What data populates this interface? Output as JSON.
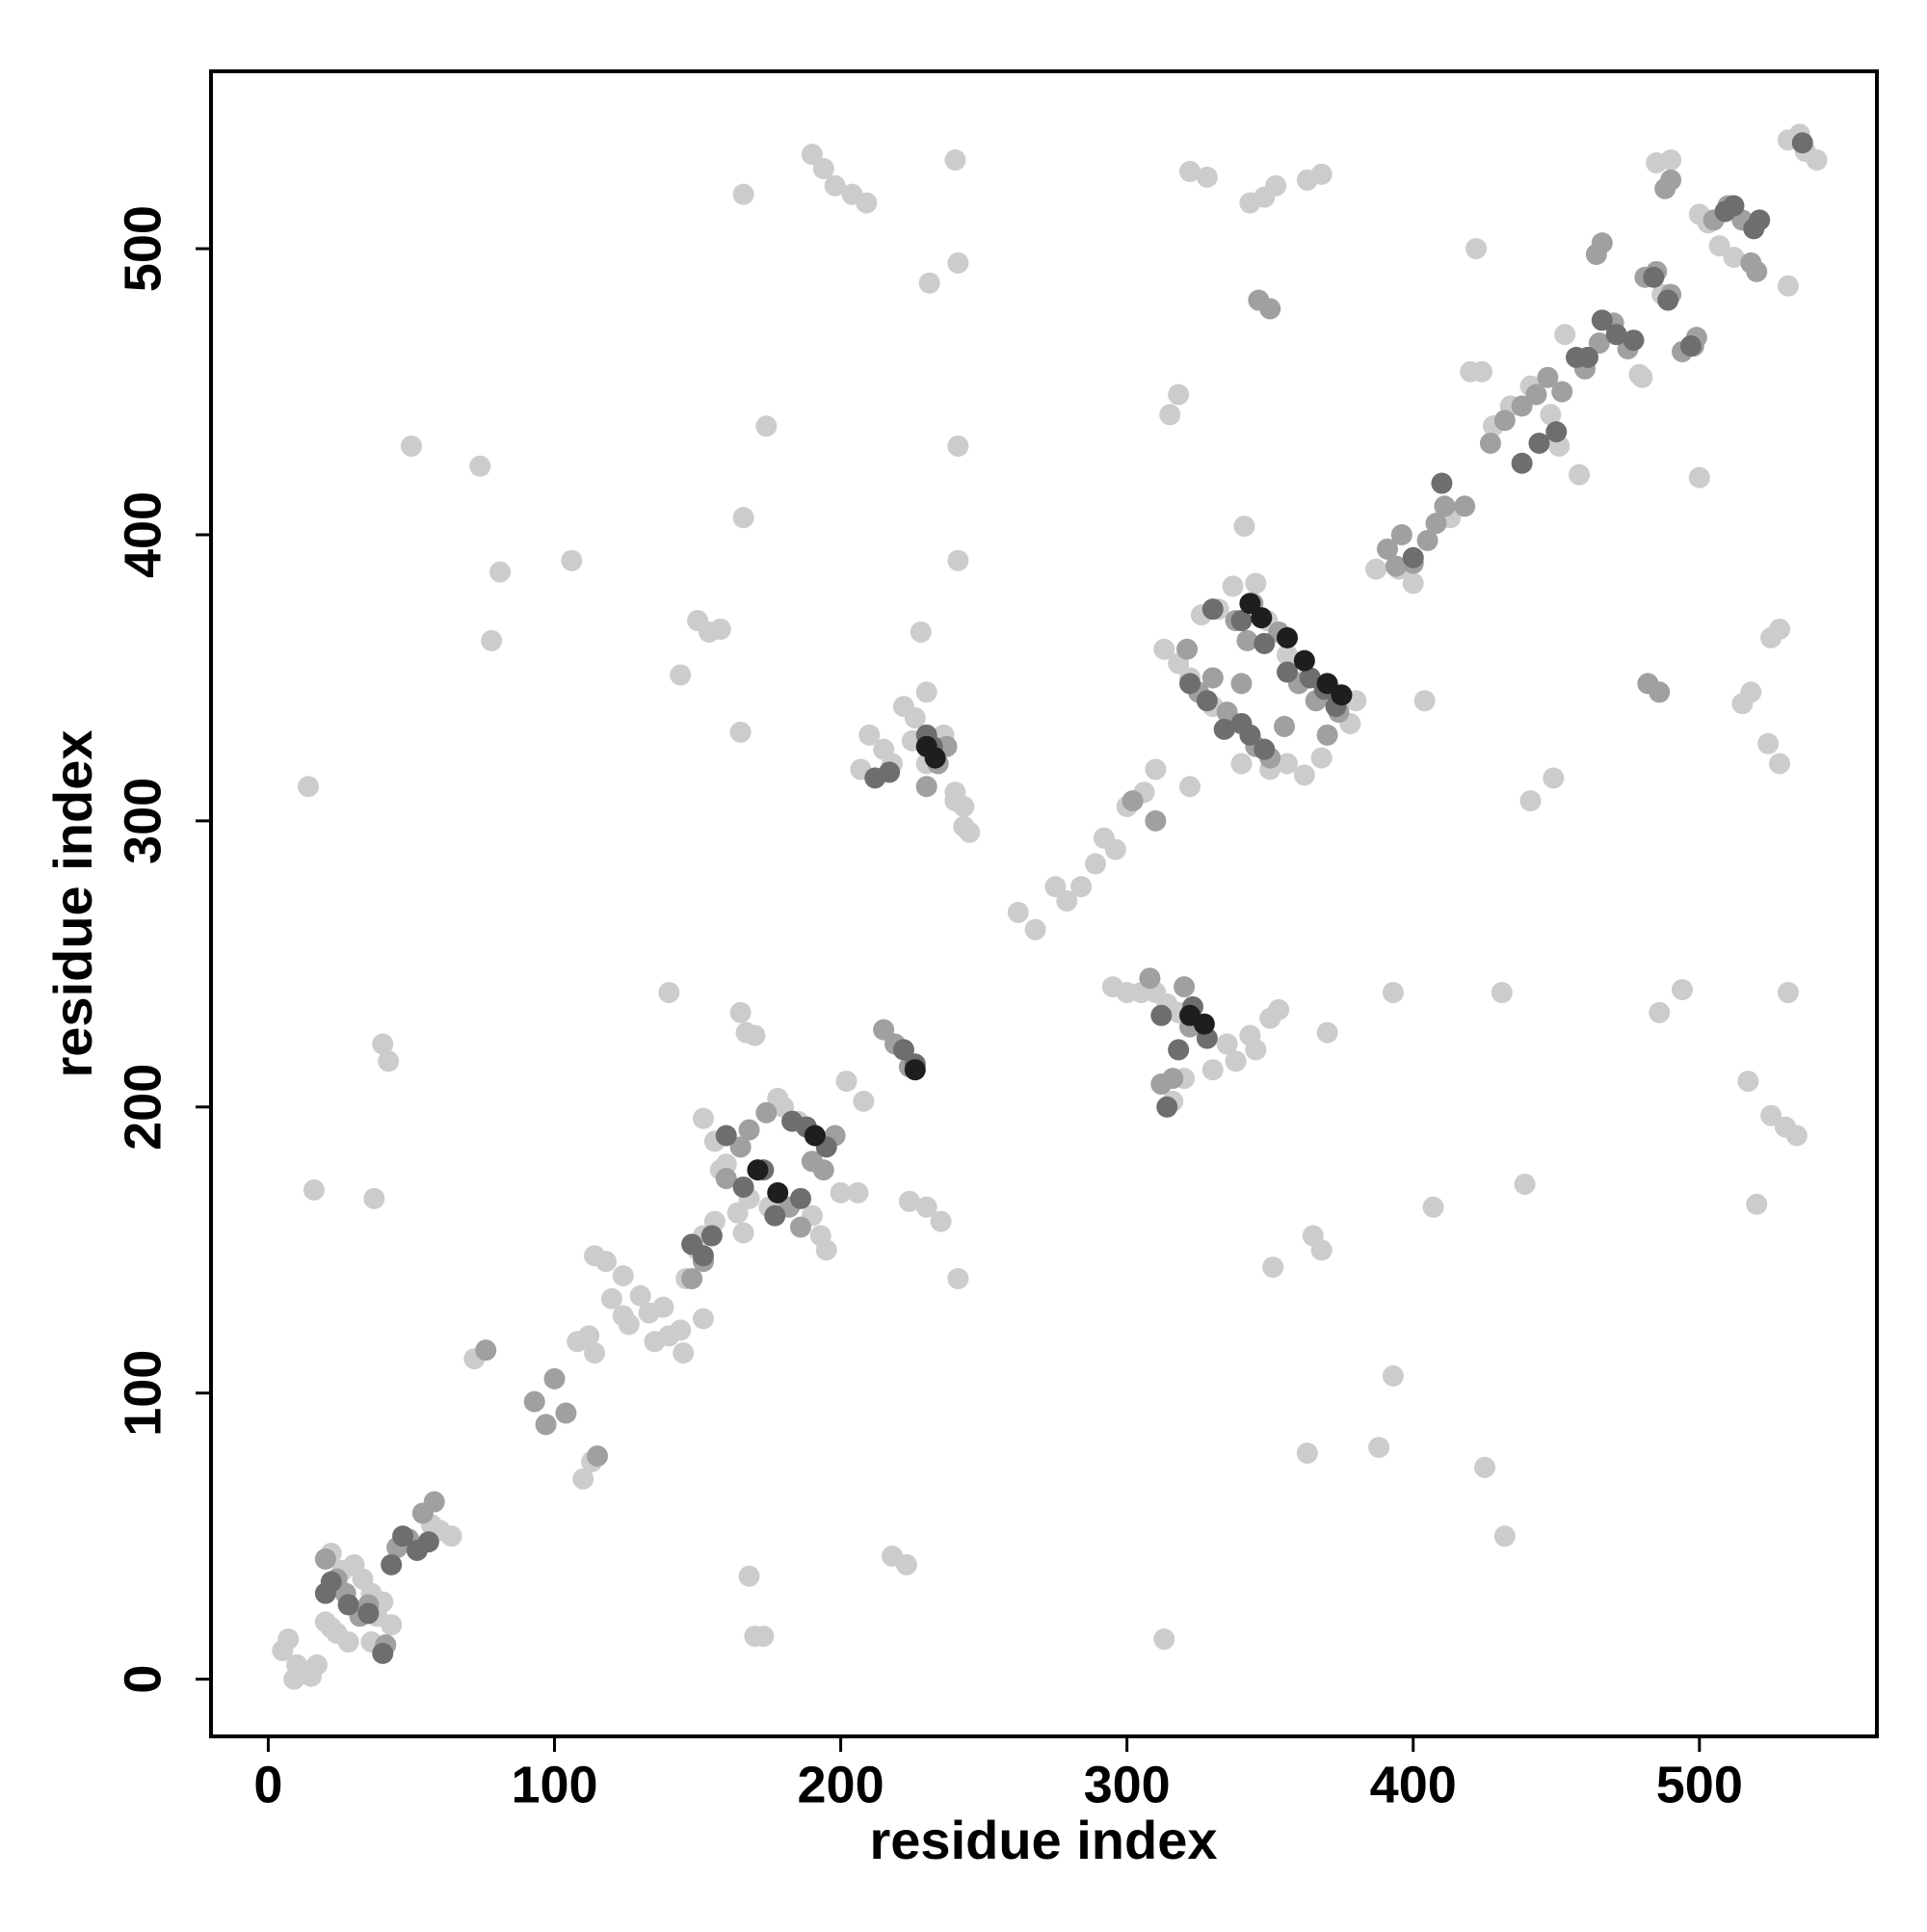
{
  "chart_data": {
    "type": "scatter",
    "xlabel": "residue index",
    "ylabel": "residue index",
    "xlim": [
      -20,
      562
    ],
    "ylim": [
      -20,
      562
    ],
    "xticks": [
      0,
      100,
      200,
      300,
      400,
      500
    ],
    "yticks": [
      0,
      100,
      200,
      300,
      400,
      500
    ],
    "series": [
      {
        "color": "#cccccc",
        "x": [
          14,
          16,
          37,
          40,
          42,
          50,
          74,
          78,
          81,
          106,
          140,
          144,
          150,
          154,
          158,
          165,
          166,
          168,
          170,
          173,
          174,
          166,
          190,
          194,
          198,
          204,
          209,
          165,
          167,
          170,
          202,
          208,
          218,
          223,
          228,
          231,
          240,
          241,
          241,
          241,
          241,
          224,
          230,
          235,
          313,
          322,
          315,
          318,
          341,
          351,
          363,
          365,
          368,
          370,
          393,
          393,
          388,
          404,
          407,
          422,
          424,
          425,
          431,
          432,
          439,
          441,
          449,
          451,
          458,
          500,
          494,
          486,
          520,
          517,
          525,
          530,
          534,
          531,
          525,
          528,
          518,
          515,
          524,
          528,
          531,
          322,
          328,
          343,
          348,
          352,
          363,
          368,
          305,
          300,
          295,
          310,
          314,
          318,
          338,
          345,
          350,
          353,
          343,
          335,
          330,
          320,
          316,
          292,
          300,
          306,
          310,
          296,
          289,
          284,
          279,
          275,
          268,
          262,
          395,
          400,
          387,
          413,
          420,
          428,
          434,
          441,
          448,
          453,
          480,
          479,
          487,
          503,
          507,
          500,
          512,
          531,
          535,
          537,
          541,
          485,
          490
        ],
        "values": [
          312,
          171,
          168,
          222,
          216,
          431,
          424,
          363,
          387,
          391,
          240,
          351,
          370,
          366,
          367,
          331,
          406,
          36,
          15,
          15,
          438,
          519,
          533,
          528,
          522,
          519,
          516,
          233,
          226,
          225,
          209,
          202,
          43,
          40,
          366,
          488,
          531,
          495,
          431,
          391,
          140,
          167,
          165,
          160,
          14,
          312,
          442,
          449,
          403,
          144,
          79,
          155,
          150,
          226,
          240,
          106,
          81,
          342,
          165,
          500,
          457,
          74,
          240,
          50,
          173,
          307,
          315,
          431,
          421,
          420,
          241,
          233,
          166,
          209,
          197,
          193,
          190,
          240,
          364,
          367,
          345,
          341,
          327,
          320,
          487,
          527,
          525,
          516,
          518,
          522,
          524,
          526,
          240,
          240,
          242,
          240,
          236,
          233,
          216,
          220,
          231,
          234,
          225,
          222,
          213,
          210,
          202,
          294,
          305,
          310,
          318,
          290,
          285,
          277,
          272,
          277,
          262,
          268,
          388,
          383,
          388,
          406,
          457,
          438,
          445,
          452,
          442,
          470,
          455,
          456,
          484,
          509,
          501,
          512,
          497,
          538,
          540,
          534,
          531,
          530,
          531
        ]
      },
      {
        "color": "#cccccc",
        "x": [
          5,
          7,
          10,
          12,
          15,
          9,
          17,
          20,
          22,
          26,
          30,
          33,
          36,
          38,
          40,
          22,
          24,
          28,
          36,
          43,
          57,
          60,
          64,
          72,
          110,
          113,
          108,
          112,
          114,
          118,
          120,
          124,
          126,
          130,
          133,
          138,
          140,
          145,
          146,
          150,
          152,
          156,
          158,
          152,
          156,
          160,
          164,
          166,
          168,
          175,
          178,
          180,
          185,
          190,
          193,
          195,
          200,
          206,
          114,
          124,
          135,
          144,
          152,
          210,
          215,
          218,
          222,
          226,
          230,
          236,
          240,
          243,
          243,
          245,
          240,
          230,
          225,
          207,
          313,
          318,
          322,
          330,
          335,
          340,
          343,
          350,
          356,
          362,
          368,
          326,
          332,
          337,
          345,
          349,
          356,
          363,
          372,
          380,
          378
        ],
        "values": [
          10,
          14,
          5,
          2,
          1,
          0,
          5,
          20,
          18,
          38,
          40,
          35,
          30,
          22,
          27,
          44,
          16,
          13,
          13,
          19,
          54,
          52,
          50,
          112,
          70,
          76,
          118,
          120,
          148,
          146,
          133,
          141,
          124,
          134,
          128,
          130,
          120,
          114,
          140,
          150,
          155,
          160,
          178,
          196,
          188,
          180,
          163,
          156,
          168,
          165,
          203,
          200,
          195,
          162,
          155,
          150,
          170,
          170,
          114,
          127,
          118,
          122,
          126,
          330,
          325,
          320,
          340,
          336,
          345,
          330,
          310,
          298,
          305,
          296,
          307,
          320,
          328,
          318,
          360,
          355,
          350,
          340,
          333,
          320,
          330,
          318,
          320,
          316,
          322,
          372,
          374,
          382,
          383,
          370,
          358,
          350,
          345,
          342,
          334
        ]
      },
      {
        "color": "#a0a0a0",
        "x": [
          20,
          24,
          27,
          32,
          35,
          41,
          45,
          49,
          54,
          58,
          76,
          93,
          97,
          100,
          104,
          115,
          148,
          152,
          160,
          165,
          168,
          174,
          182,
          186,
          190,
          194,
          198,
          215,
          219,
          224,
          230,
          234,
          237,
          302,
          310,
          308,
          312,
          316,
          320,
          322,
          346,
          350,
          321,
          325,
          330,
          335,
          340,
          345,
          350,
          355,
          360,
          366,
          370,
          374,
          338,
          342,
          344,
          353,
          391,
          396,
          405,
          408,
          411,
          418,
          394,
          400,
          427,
          432,
          438,
          443,
          447,
          452,
          460,
          465,
          470,
          475,
          481,
          485,
          490,
          494,
          498,
          499,
          482,
          486,
          505,
          510,
          515,
          518,
          520,
          464,
          466,
          488,
          490
        ],
        "values": [
          42,
          35,
          30,
          22,
          26,
          12,
          46,
          49,
          58,
          62,
          115,
          97,
          89,
          105,
          93,
          78,
          140,
          146,
          175,
          186,
          192,
          198,
          165,
          158,
          181,
          178,
          190,
          227,
          222,
          214,
          312,
          320,
          326,
          307,
          300,
          245,
          208,
          210,
          242,
          228,
          482,
          479,
          360,
          345,
          350,
          338,
          348,
          326,
          322,
          333,
          348,
          342,
          330,
          338,
          370,
          363,
          376,
          366,
          395,
          400,
          398,
          404,
          410,
          410,
          389,
          390,
          432,
          440,
          445,
          449,
          455,
          450,
          458,
          467,
          474,
          465,
          490,
          492,
          484,
          464,
          466,
          469,
          348,
          345,
          510,
          515,
          510,
          495,
          492,
          498,
          502,
          521,
          524
        ]
      },
      {
        "color": "#6e6e6e",
        "x": [
          20,
          22,
          28,
          35,
          40,
          43,
          47,
          52,
          56,
          148,
          152,
          155,
          160,
          166,
          173,
          177,
          183,
          188,
          186,
          195,
          212,
          217,
          222,
          226,
          230,
          232,
          314,
          312,
          328,
          323,
          318,
          322,
          328,
          334,
          340,
          343,
          348,
          330,
          340,
          348,
          356,
          364,
          369,
          373,
          410,
          400,
          438,
          444,
          450,
          457,
          461,
          466,
          471,
          477,
          484,
          489,
          497,
          509,
          512,
          519,
          521,
          536
        ],
        "values": [
          30,
          34,
          26,
          23,
          9,
          40,
          50,
          45,
          48,
          152,
          148,
          155,
          190,
          172,
          178,
          162,
          195,
          193,
          168,
          186,
          315,
          317,
          220,
          215,
          330,
          326,
          200,
          232,
          224,
          235,
          220,
          348,
          342,
          332,
          334,
          330,
          325,
          374,
          370,
          362,
          352,
          350,
          346,
          340,
          418,
          392,
          425,
          432,
          436,
          462,
          462,
          475,
          470,
          468,
          490,
          482,
          466,
          513,
          515,
          507,
          510,
          537
        ]
      },
      {
        "color": "#1e1e1e",
        "x": [
          171,
          178,
          191,
          226,
          230,
          233,
          322,
          327,
          343,
          347,
          356,
          362,
          370,
          375
        ],
        "values": [
          178,
          170,
          190,
          213,
          326,
          322,
          232,
          229,
          376,
          371,
          364,
          356,
          348,
          344
        ]
      }
    ]
  }
}
